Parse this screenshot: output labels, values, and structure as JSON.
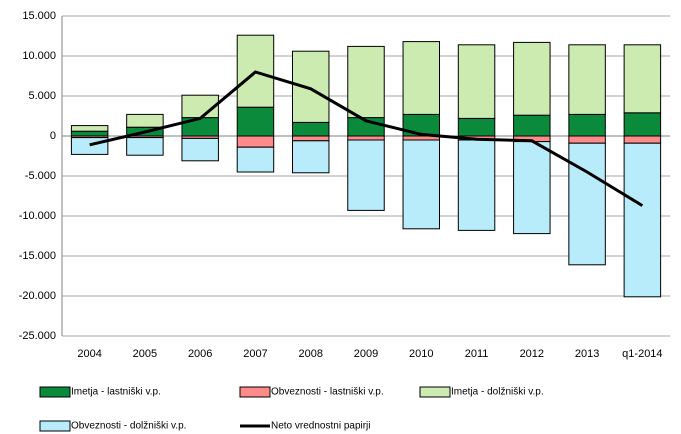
{
  "chart_data": {
    "type": "bar",
    "stacked": true,
    "categories": [
      "2004",
      "2005",
      "2006",
      "2007",
      "2008",
      "2009",
      "2010",
      "2011",
      "2012",
      "2013",
      "q1-2014"
    ],
    "series": [
      {
        "name": "Imetja - lastniški v.p.",
        "color": "#0b8a3c",
        "values": [
          600,
          1100,
          2300,
          3600,
          1700,
          2300,
          2700,
          2200,
          2600,
          2700,
          2900
        ]
      },
      {
        "name": "Obveznosti - lastniški v.p.",
        "color": "#ff8a8a",
        "values": [
          -200,
          -200,
          -300,
          -1400,
          -600,
          -500,
          -500,
          -500,
          -700,
          -900,
          -900
        ]
      },
      {
        "name": "Imetja - dolžniški v.p.",
        "color": "#ccebb0",
        "values": [
          700,
          1600,
          2800,
          9000,
          8900,
          8900,
          9100,
          9200,
          9100,
          8700,
          8500
        ]
      },
      {
        "name": "Obveznosti - dolžniški v.p.",
        "color": "#b8ecfb",
        "values": [
          -2100,
          -2200,
          -2800,
          -3100,
          -4000,
          -8800,
          -11100,
          -11300,
          -11500,
          -15200,
          -19200
        ]
      },
      {
        "name": "Neto vrednostni papirji",
        "color": "#000000",
        "type": "line",
        "values": [
          -1100,
          500,
          2200,
          8000,
          5900,
          1900,
          200,
          -400,
          -600,
          -4500,
          -8700
        ]
      }
    ],
    "ylim": [
      -25000,
      15000
    ],
    "yticks": [
      {
        "value": 15000,
        "label": "15.000"
      },
      {
        "value": 10000,
        "label": "10.000"
      },
      {
        "value": 5000,
        "label": "5.000"
      },
      0,
      {
        "value": -5000,
        "label": "-5.000"
      },
      {
        "value": -10000,
        "label": "-10.000"
      },
      {
        "value": -15000,
        "label": "-15.000"
      },
      {
        "value": -20000,
        "label": "-20.000"
      },
      {
        "value": -25000,
        "label": "-25.000"
      }
    ],
    "grid": true,
    "legend": "bottom"
  }
}
